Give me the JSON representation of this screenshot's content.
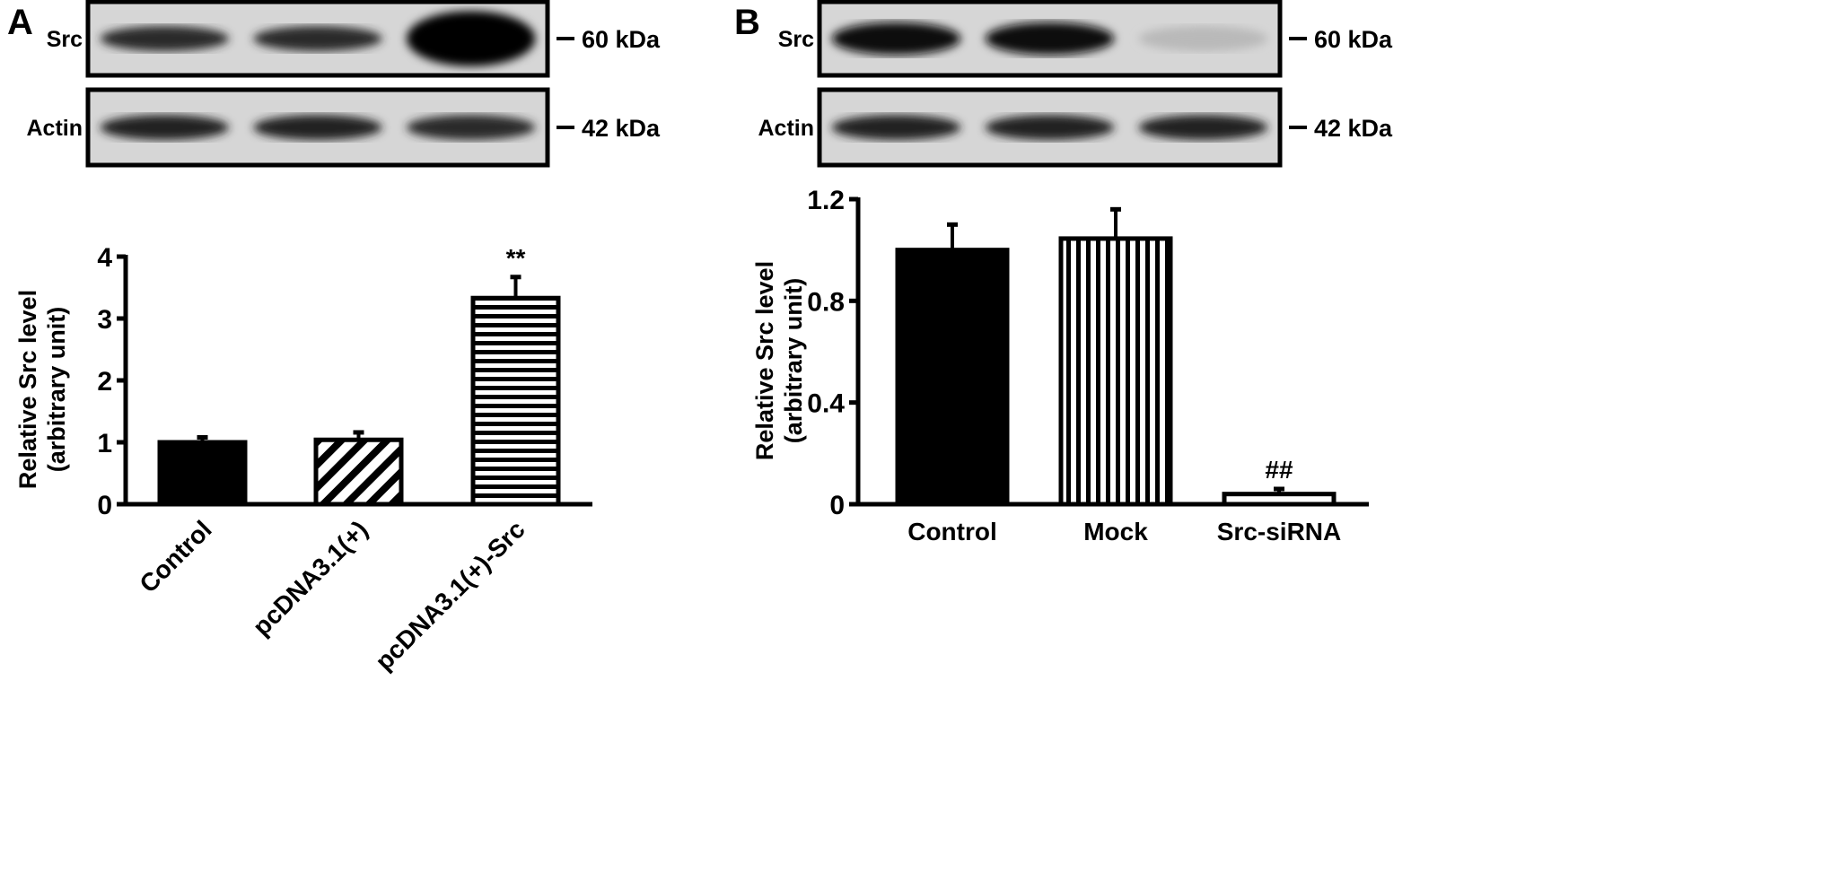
{
  "panels": [
    {
      "letter": "A",
      "blot": {
        "rows": [
          {
            "label": "Src",
            "marker": "60 kDa",
            "band_intensity": [
              0.8,
              0.8,
              1.0
            ],
            "band_thickness": [
              1,
              1,
              2.2
            ]
          },
          {
            "label": "Actin",
            "marker": "42 kDa",
            "band_intensity": [
              0.85,
              0.85,
              0.8
            ],
            "band_thickness": [
              1,
              1,
              1
            ]
          }
        ]
      },
      "chart_data": {
        "type": "bar",
        "categories": [
          "Control",
          "pcDNA3.1(+)",
          "pcDNA3.1(+)-Src"
        ],
        "values": [
          1.0,
          1.04,
          3.33
        ],
        "errors": [
          0.08,
          0.12,
          0.34
        ],
        "patterns": [
          "solid",
          "diagonal",
          "horizontal"
        ],
        "annotations": [
          "",
          "",
          "**"
        ],
        "ylabel": [
          "Relative Src level",
          "(arbitrary unit)"
        ],
        "ylim": [
          0,
          4
        ],
        "yticks": [
          "0",
          "1",
          "2",
          "3",
          "4"
        ],
        "ytick_values": [
          0,
          1,
          2,
          3,
          4
        ],
        "xtick_rotation": -45,
        "grid": false
      }
    },
    {
      "letter": "B",
      "blot": {
        "rows": [
          {
            "label": "Src",
            "marker": "60 kDa",
            "band_intensity": [
              0.95,
              0.95,
              0.12
            ],
            "band_thickness": [
              1.3,
              1.3,
              1
            ]
          },
          {
            "label": "Actin",
            "marker": "42 kDa",
            "band_intensity": [
              0.85,
              0.85,
              0.85
            ],
            "band_thickness": [
              1,
              1,
              1
            ]
          }
        ]
      },
      "chart_data": {
        "type": "bar",
        "categories": [
          "Control",
          "Mock",
          "Src-siRNA"
        ],
        "values": [
          1.0,
          1.045,
          0.04
        ],
        "errors": [
          0.1,
          0.115,
          0.02
        ],
        "patterns": [
          "solid",
          "vertical",
          "white"
        ],
        "annotations": [
          "",
          "",
          "##"
        ],
        "ylabel": [
          "Relative Src level",
          "(arbitrary unit)"
        ],
        "ylim": [
          0,
          1.2
        ],
        "yticks": [
          "0",
          "0.4",
          "0.8",
          "1.2"
        ],
        "ytick_values": [
          0,
          0.4,
          0.8,
          1.2
        ],
        "xtick_rotation": 0,
        "grid": false
      }
    }
  ]
}
